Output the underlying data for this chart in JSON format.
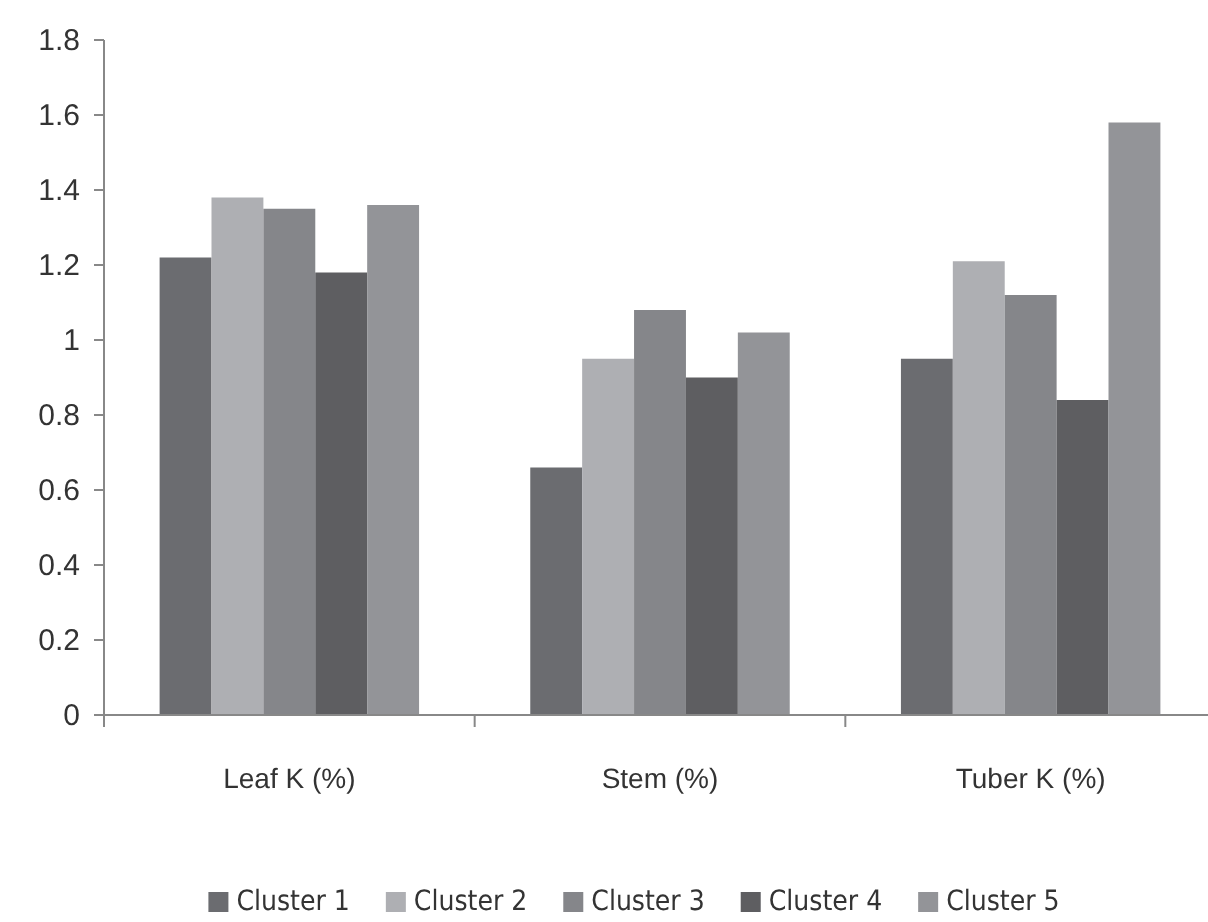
{
  "chart_data": {
    "type": "bar",
    "categories": [
      "Leaf K (%)",
      "Stem (%)",
      "Tuber K (%)"
    ],
    "series": [
      {
        "name": "Cluster 1",
        "color": "#6b6c70",
        "values": [
          1.22,
          0.66,
          0.95
        ]
      },
      {
        "name": "Cluster 2",
        "color": "#aeafb3",
        "values": [
          1.38,
          0.95,
          1.21
        ]
      },
      {
        "name": "Cluster 3",
        "color": "#85868a",
        "values": [
          1.35,
          1.08,
          1.12
        ]
      },
      {
        "name": "Cluster 4",
        "color": "#5e5e61",
        "values": [
          1.18,
          0.9,
          0.84
        ]
      },
      {
        "name": "Cluster 5",
        "color": "#939498",
        "values": [
          1.36,
          1.02,
          1.58
        ]
      }
    ],
    "ylim": [
      0,
      1.8
    ],
    "yticks": [
      0,
      0.2,
      0.4,
      0.6,
      0.8,
      1,
      1.2,
      1.4,
      1.6,
      1.8
    ],
    "grid": false,
    "legend": "bottom"
  }
}
